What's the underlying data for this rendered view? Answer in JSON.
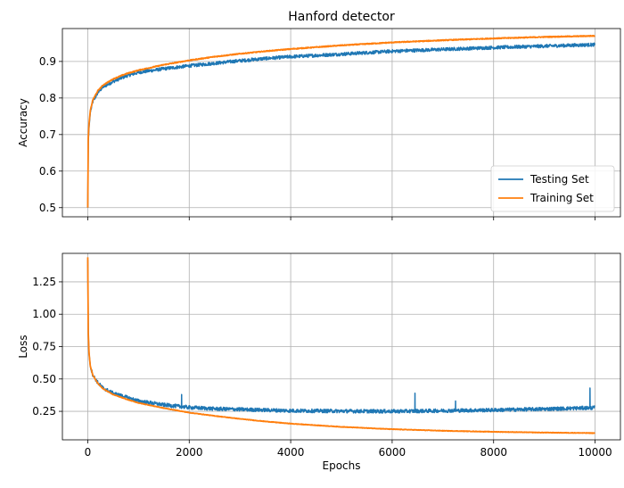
{
  "chart_data": [
    {
      "type": "line",
      "title": "Hanford detector",
      "xlabel": "",
      "ylabel": "Accuracy",
      "xlim": [
        -500,
        10500
      ],
      "ylim": [
        0.475,
        0.99
      ],
      "xticks": [
        0,
        2000,
        4000,
        6000,
        8000,
        10000
      ],
      "xtick_labels_visible": false,
      "yticks": [
        0.5,
        0.6,
        0.7,
        0.8,
        0.9
      ],
      "ytick_labels": [
        "0.5",
        "0.6",
        "0.7",
        "0.8",
        "0.9"
      ],
      "grid": true,
      "legend": "lower-right",
      "series": [
        {
          "name": "Testing Set",
          "color": "#1f77b4",
          "x": [
            0,
            10,
            25,
            50,
            100,
            200,
            300,
            500,
            750,
            1000,
            1500,
            2000,
            2500,
            3000,
            3500,
            4000,
            5000,
            6000,
            7000,
            8000,
            9000,
            10000
          ],
          "y": [
            0.5,
            0.68,
            0.72,
            0.76,
            0.79,
            0.815,
            0.83,
            0.845,
            0.86,
            0.87,
            0.88,
            0.888,
            0.895,
            0.902,
            0.908,
            0.913,
            0.92,
            0.928,
            0.933,
            0.938,
            0.942,
            0.946
          ]
        },
        {
          "name": "Training Set",
          "color": "#ff7f0e",
          "x": [
            0,
            10,
            25,
            50,
            100,
            200,
            300,
            500,
            750,
            1000,
            1500,
            2000,
            2500,
            3000,
            3500,
            4000,
            5000,
            6000,
            7000,
            8000,
            9000,
            10000
          ],
          "y": [
            0.5,
            0.69,
            0.73,
            0.765,
            0.795,
            0.82,
            0.835,
            0.852,
            0.866,
            0.876,
            0.891,
            0.903,
            0.913,
            0.921,
            0.928,
            0.934,
            0.944,
            0.952,
            0.958,
            0.963,
            0.967,
            0.97
          ]
        }
      ]
    },
    {
      "type": "line",
      "title": "",
      "xlabel": "Epochs",
      "ylabel": "Loss",
      "xlim": [
        -500,
        10500
      ],
      "ylim": [
        0.03,
        1.47
      ],
      "xticks": [
        0,
        2000,
        4000,
        6000,
        8000,
        10000
      ],
      "xtick_labels": [
        "0",
        "2000",
        "4000",
        "6000",
        "8000",
        "10000"
      ],
      "yticks": [
        0.25,
        0.5,
        0.75,
        1.0,
        1.25
      ],
      "ytick_labels": [
        "0.25",
        "0.50",
        "0.75",
        "1.00",
        "1.25"
      ],
      "grid": true,
      "series": [
        {
          "name": "Testing Set",
          "color": "#1f77b4",
          "x": [
            0,
            10,
            25,
            50,
            100,
            200,
            300,
            500,
            750,
            1000,
            1500,
            2000,
            2500,
            3000,
            3500,
            4000,
            5000,
            6000,
            7000,
            8000,
            9000,
            10000
          ],
          "y": [
            1.42,
            0.85,
            0.7,
            0.6,
            0.53,
            0.47,
            0.43,
            0.39,
            0.36,
            0.33,
            0.3,
            0.28,
            0.27,
            0.265,
            0.26,
            0.255,
            0.252,
            0.25,
            0.255,
            0.26,
            0.268,
            0.278
          ],
          "spikes": [
            [
              1850,
              0.38
            ],
            [
              6450,
              0.39
            ],
            [
              7250,
              0.33
            ],
            [
              9900,
              0.43
            ]
          ]
        },
        {
          "name": "Training Set",
          "color": "#ff7f0e",
          "x": [
            0,
            10,
            25,
            50,
            100,
            200,
            300,
            500,
            750,
            1000,
            1500,
            2000,
            2500,
            3000,
            3500,
            4000,
            5000,
            6000,
            7000,
            8000,
            9000,
            10000
          ],
          "y": [
            1.44,
            0.86,
            0.7,
            0.6,
            0.53,
            0.465,
            0.425,
            0.38,
            0.345,
            0.315,
            0.275,
            0.24,
            0.215,
            0.192,
            0.172,
            0.155,
            0.13,
            0.112,
            0.1,
            0.092,
            0.086,
            0.082
          ]
        }
      ]
    }
  ]
}
